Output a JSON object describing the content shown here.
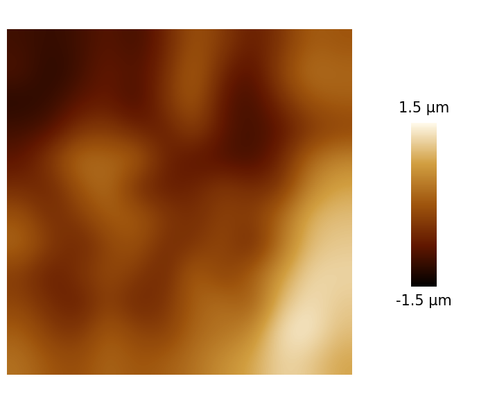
{
  "chart_data": {
    "type": "heatmap",
    "cells": [
      [
        -1.0,
        -1.1,
        -1.0,
        -0.8,
        -1.0,
        -0.6,
        0.0,
        -0.3,
        -0.7,
        -0.4,
        0.1,
        0.0
      ],
      [
        -0.9,
        -1.2,
        -1.0,
        -0.7,
        -0.9,
        -0.5,
        0.2,
        -0.6,
        -0.9,
        -0.2,
        0.3,
        0.2
      ],
      [
        -1.2,
        -1.1,
        -0.8,
        -0.7,
        -1.0,
        -0.4,
        0.1,
        -0.8,
        -1.0,
        -0.5,
        0.0,
        0.1
      ],
      [
        -1.0,
        -0.9,
        -0.4,
        -0.3,
        -0.6,
        -0.7,
        -0.2,
        -0.8,
        -1.0,
        -0.8,
        -0.4,
        -0.2
      ],
      [
        -0.8,
        -0.3,
        0.3,
        0.2,
        0.2,
        -0.6,
        -0.8,
        -0.9,
        -1.0,
        -0.6,
        0.2,
        0.5
      ],
      [
        -0.5,
        -0.6,
        0.0,
        0.3,
        -0.5,
        -0.7,
        -0.6,
        -0.3,
        -0.5,
        -0.4,
        0.5,
        0.8
      ],
      [
        0.0,
        -0.5,
        -0.3,
        0.1,
        0.1,
        -0.3,
        -0.5,
        -0.2,
        -0.3,
        0.2,
        0.9,
        1.0
      ],
      [
        0.2,
        -0.3,
        -0.6,
        -0.2,
        0.0,
        -0.5,
        -0.4,
        -0.1,
        -0.6,
        0.3,
        1.0,
        1.1
      ],
      [
        -0.3,
        -0.7,
        -0.4,
        -0.1,
        -0.3,
        -0.6,
        0.2,
        -0.3,
        0.1,
        0.7,
        1.2,
        1.2
      ],
      [
        -0.2,
        -0.5,
        -0.7,
        -0.2,
        -0.6,
        -0.4,
        0.1,
        0.3,
        0.0,
        1.0,
        1.3,
        1.1
      ],
      [
        0.1,
        -0.3,
        -0.4,
        0.1,
        -0.2,
        -0.3,
        0.2,
        0.3,
        0.5,
        1.3,
        1.4,
        1.0
      ],
      [
        0.3,
        0.0,
        -0.1,
        0.2,
        0.0,
        0.1,
        0.3,
        0.6,
        0.8,
        1.2,
        1.1,
        0.8
      ]
    ],
    "colorbar_range": [
      -1.5,
      1.5
    ],
    "colorbar_ticks": [
      {
        "value": 1.5,
        "label": "1.5 µm"
      },
      {
        "value": -1.5,
        "label": "-1.5 µm"
      }
    ],
    "tick_labels": false
  }
}
